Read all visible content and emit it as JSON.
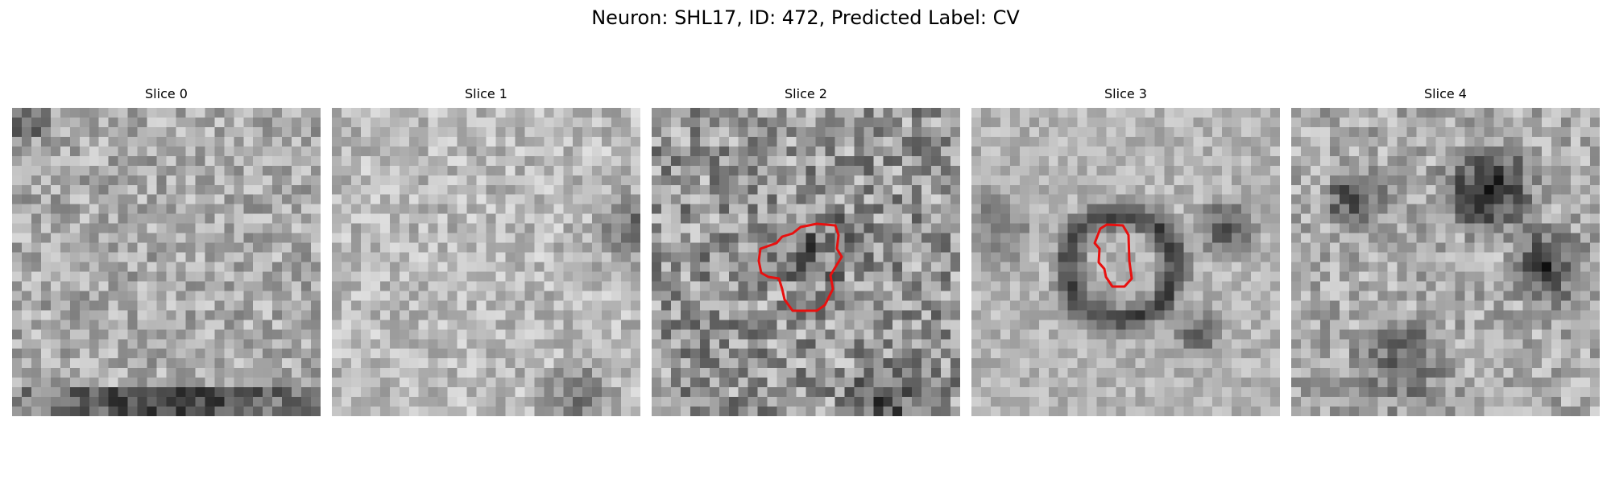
{
  "figure": {
    "title": "Neuron: SHL17, ID: 472, Predicted Label: CV"
  },
  "colors": {
    "contour": "#e8100f",
    "background": "#ffffff"
  },
  "slices": [
    {
      "label": "Slice 0",
      "has_contour": false
    },
    {
      "label": "Slice 1",
      "has_contour": false
    },
    {
      "label": "Slice 2",
      "has_contour": true
    },
    {
      "label": "Slice 3",
      "has_contour": true
    },
    {
      "label": "Slice 4",
      "has_contour": false
    }
  ]
}
